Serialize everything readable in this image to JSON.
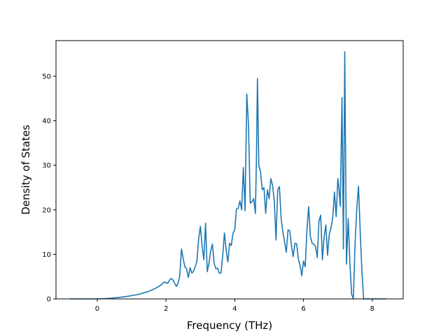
{
  "chart_data": {
    "type": "line",
    "title": "",
    "xlabel": "Frequency (THz)",
    "ylabel": "Density of States",
    "xlim": [
      -1.2,
      8.9
    ],
    "ylim": [
      0,
      58
    ],
    "xticks": [
      0,
      2,
      4,
      6,
      8
    ],
    "yticks": [
      0,
      10,
      20,
      30,
      40,
      50
    ],
    "grid": false,
    "legend": "none",
    "colors": {
      "line": "#1f77b4",
      "axes": "#000000",
      "background": "#ffffff"
    },
    "series": [
      {
        "x": [
          -0.8,
          -0.5,
          0.0,
          0.3,
          0.6,
          0.9,
          1.2,
          1.5,
          1.7,
          1.85,
          1.95,
          2.05,
          2.1,
          2.15,
          2.2,
          2.3,
          2.35,
          2.4,
          2.45,
          2.5,
          2.55,
          2.6,
          2.65,
          2.7,
          2.75,
          2.8,
          2.85,
          2.9,
          2.95,
          3.0,
          3.05,
          3.1,
          3.15,
          3.2,
          3.25,
          3.3,
          3.35,
          3.4,
          3.45,
          3.5,
          3.55,
          3.6,
          3.65,
          3.7,
          3.75,
          3.8,
          3.85,
          3.9,
          3.95,
          4.0,
          4.05,
          4.1,
          4.15,
          4.2,
          4.25,
          4.3,
          4.35,
          4.4,
          4.45,
          4.5,
          4.55,
          4.6,
          4.63,
          4.66,
          4.7,
          4.75,
          4.8,
          4.85,
          4.9,
          4.95,
          5.0,
          5.05,
          5.1,
          5.15,
          5.2,
          5.25,
          5.3,
          5.35,
          5.4,
          5.45,
          5.5,
          5.55,
          5.6,
          5.65,
          5.7,
          5.75,
          5.8,
          5.85,
          5.9,
          5.95,
          6.0,
          6.05,
          6.1,
          6.15,
          6.2,
          6.25,
          6.3,
          6.35,
          6.4,
          6.45,
          6.5,
          6.55,
          6.6,
          6.65,
          6.7,
          6.75,
          6.8,
          6.85,
          6.9,
          6.95,
          7.0,
          7.03,
          7.07,
          7.12,
          7.16,
          7.2,
          7.25,
          7.3,
          7.35,
          7.4,
          7.45,
          7.5,
          7.55,
          7.6,
          7.65,
          7.7,
          7.75,
          8.0,
          8.4
        ],
        "y": [
          0,
          0,
          0,
          0.1,
          0.3,
          0.6,
          1.0,
          1.7,
          2.4,
          3.1,
          3.8,
          3.5,
          4.2,
          4.6,
          4.3,
          2.8,
          3.5,
          5.2,
          11.2,
          9.0,
          7.2,
          6.8,
          4.8,
          7.0,
          5.8,
          6.2,
          7.2,
          8.5,
          13.5,
          16.3,
          12.0,
          8.8,
          17.0,
          6.1,
          8.0,
          10.8,
          12.3,
          8.0,
          6.8,
          6.9,
          5.8,
          5.8,
          9.8,
          14.8,
          11.0,
          8.3,
          12.5,
          12.0,
          14.8,
          15.5,
          20.2,
          20.3,
          22.0,
          20.0,
          29.5,
          19.8,
          46.0,
          39.0,
          21.5,
          21.8,
          22.5,
          19.2,
          31.0,
          49.5,
          30.0,
          28.5,
          24.5,
          25.0,
          19.2,
          24.5,
          22.5,
          27.0,
          25.5,
          22.0,
          13.2,
          24.5,
          25.2,
          18.0,
          15.0,
          12.8,
          10.5,
          15.5,
          15.3,
          12.0,
          9.5,
          12.5,
          12.4,
          9.0,
          7.5,
          5.2,
          8.5,
          7.2,
          15.5,
          20.7,
          14.0,
          12.5,
          12.3,
          11.8,
          9.3,
          17.5,
          18.8,
          8.8,
          14.0,
          16.6,
          9.8,
          14.5,
          16.0,
          18.3,
          24.0,
          18.5,
          27.0,
          24.8,
          20.8,
          45.2,
          11.2,
          55.5,
          7.8,
          18.0,
          8.0,
          1.0,
          0,
          12.5,
          20.3,
          25.3,
          15.0,
          6.0,
          0,
          0,
          0
        ]
      }
    ]
  }
}
